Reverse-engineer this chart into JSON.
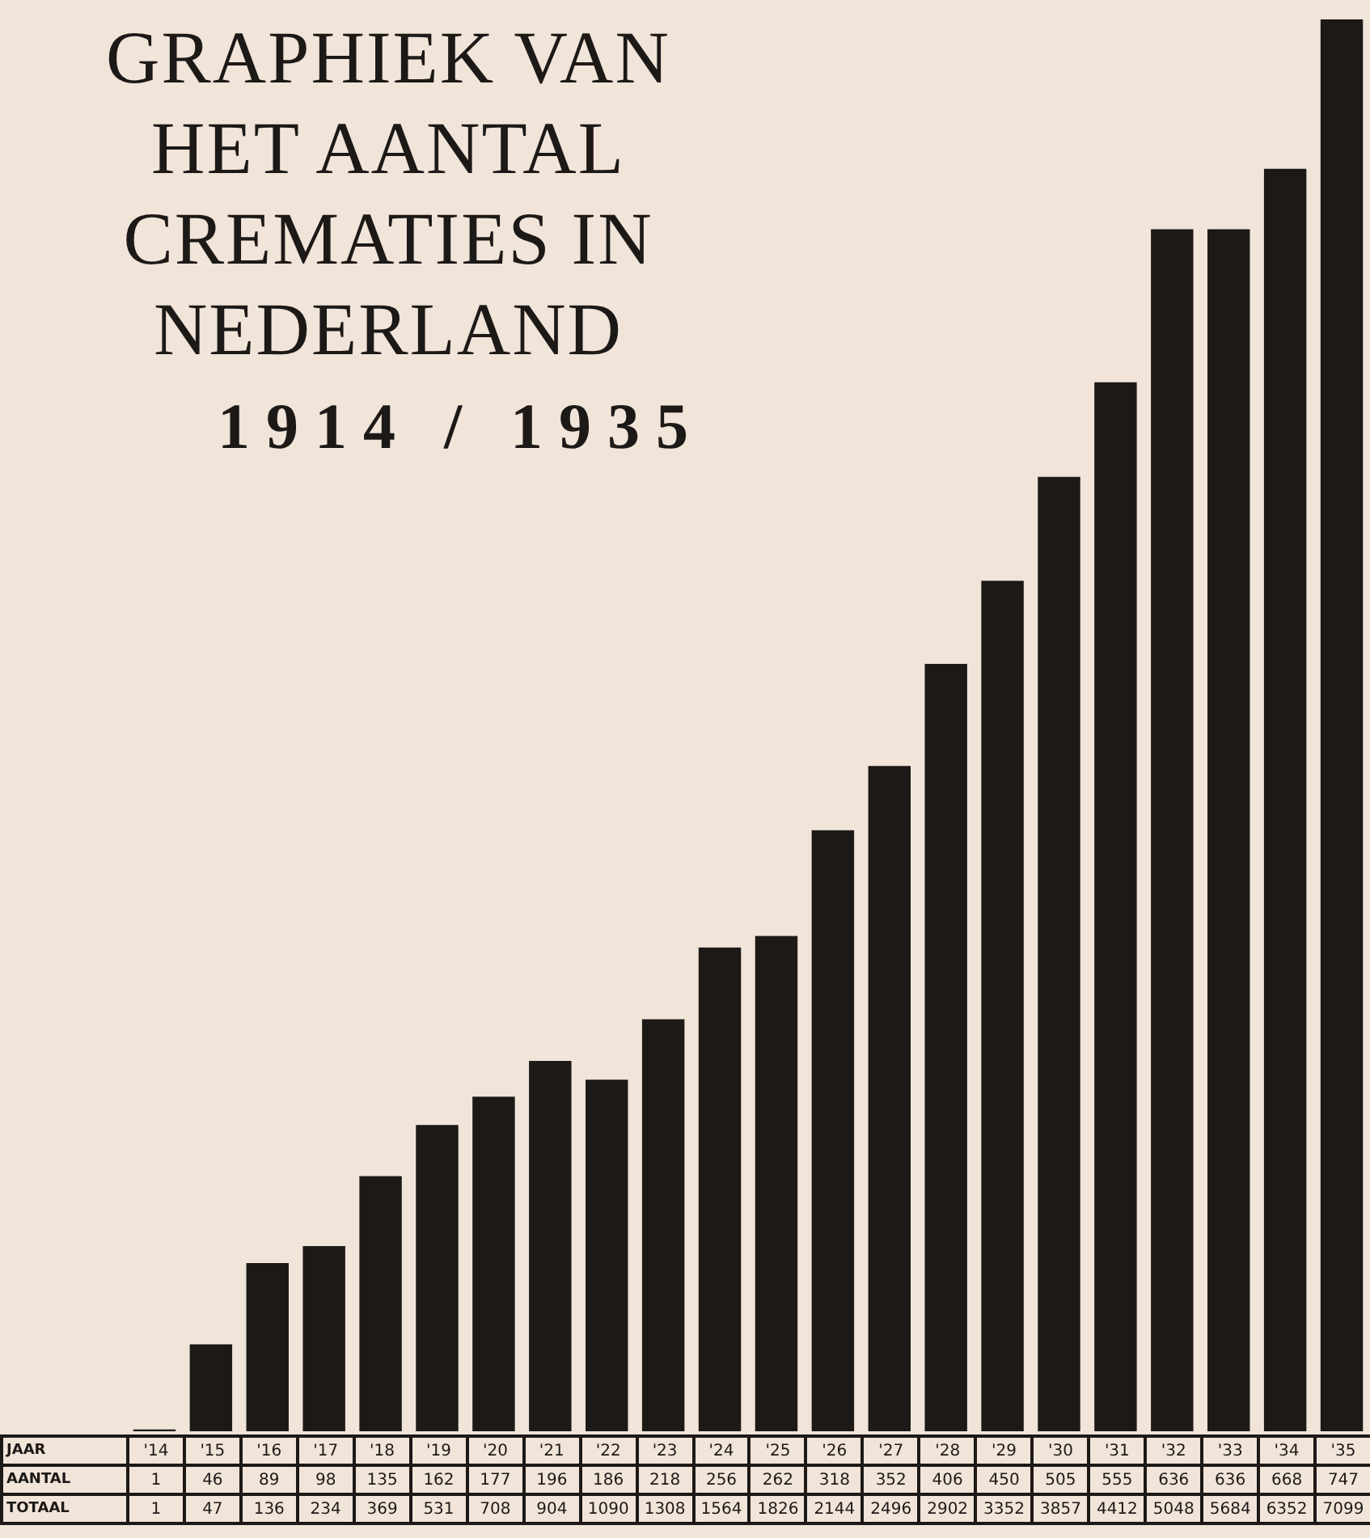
{
  "chart_data": {
    "type": "bar",
    "title": "GRAPHIEK VAN HET AANTAL CREMATIES IN NEDERLAND",
    "subtitle": "1914 / 1935",
    "categories": [
      "'14",
      "'15",
      "'16",
      "'17",
      "'18",
      "'19",
      "'20",
      "'21",
      "'22",
      "'23",
      "'24",
      "'25",
      "'26",
      "'27",
      "'28",
      "'29",
      "'30",
      "'31",
      "'32",
      "'33",
      "'34",
      "'35"
    ],
    "series": [
      {
        "name": "AANTAL",
        "color": "#1c1917",
        "values": [
          1,
          46,
          89,
          98,
          135,
          162,
          177,
          196,
          186,
          218,
          256,
          262,
          318,
          352,
          406,
          450,
          505,
          555,
          636,
          636,
          668,
          747
        ]
      }
    ],
    "data_labels": true,
    "annotations": [
      "JAAR",
      "TOTAAL",
      "1",
      "47",
      "136",
      "234",
      "369",
      "531",
      "708",
      "904",
      "1090",
      "1308",
      "1564",
      "1826",
      "2144",
      "2496",
      "2902",
      "3352",
      "3857",
      "4412",
      "5048",
      "5684",
      "6352",
      "7099"
    ],
    "legend": false
  }
}
